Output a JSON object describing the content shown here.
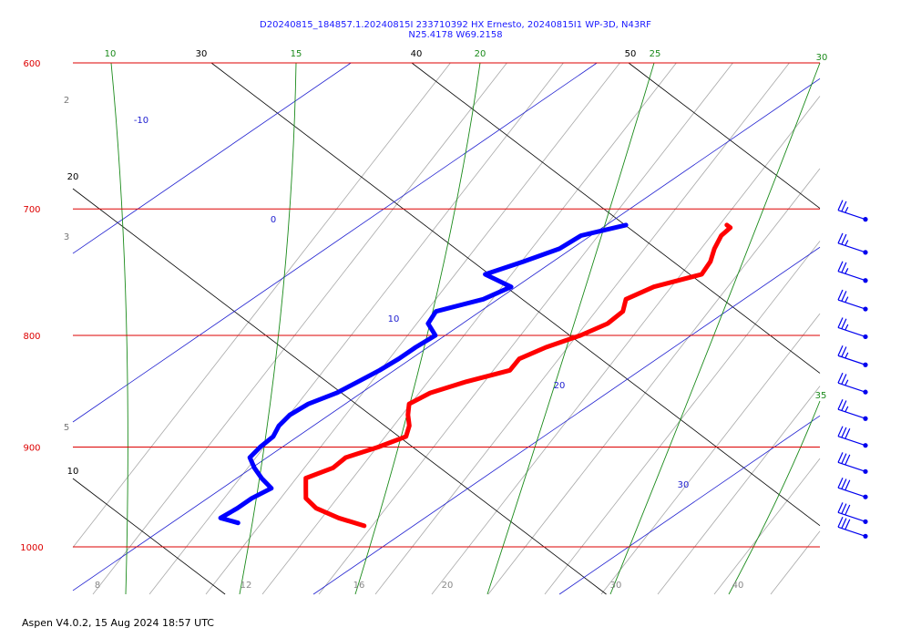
{
  "chart_data": {
    "type": "skew-t",
    "title": "D20240815_184857.1.20240815I 233710392 HX Ernesto, 20240815I1 WP-3D, N43RF",
    "subtitle": "N25.4178 W69.2158",
    "pressure_levels": [
      {
        "p": 600,
        "label": "600"
      },
      {
        "p": 700,
        "label": "700"
      },
      {
        "p": 800,
        "label": "800"
      },
      {
        "p": 900,
        "label": "900"
      },
      {
        "p": 1000,
        "label": "1000"
      }
    ],
    "isotherms": [
      {
        "t": -10,
        "label": "-10"
      },
      {
        "t": 0,
        "label": "0"
      },
      {
        "t": 10,
        "label": "10"
      },
      {
        "t": 20,
        "label": "20"
      },
      {
        "t": 30,
        "label": "30"
      }
    ],
    "bottom_temp_ticks": [
      "8",
      "12",
      "16",
      "20",
      "30",
      "40"
    ],
    "dry_adiabat_labels": [
      "10",
      "20",
      "30",
      "40",
      "50"
    ],
    "moist_adiabat_labels": [
      "10",
      "15",
      "20",
      "25",
      "30",
      "35"
    ],
    "mixing_ratio_labels": [
      "2",
      "3",
      "5"
    ],
    "temperature": {
      "name": "Temperature",
      "color": "#ff0000",
      "points": [
        [
          712,
          14.9
        ],
        [
          714,
          15.2
        ],
        [
          720,
          15.3
        ],
        [
          730,
          15.8
        ],
        [
          740,
          16.4
        ],
        [
          750,
          16.8
        ],
        [
          760,
          15.6
        ],
        [
          770,
          15.2
        ],
        [
          780,
          15.8
        ],
        [
          790,
          15.9
        ],
        [
          800,
          15.5
        ],
        [
          810,
          14.8
        ],
        [
          820,
          14.4
        ],
        [
          830,
          14.7
        ],
        [
          840,
          13.6
        ],
        [
          850,
          12.8
        ],
        [
          860,
          12.6
        ],
        [
          870,
          13.2
        ],
        [
          880,
          13.9
        ],
        [
          890,
          14.4
        ],
        [
          900,
          13.9
        ],
        [
          910,
          13.2
        ],
        [
          920,
          13.3
        ],
        [
          930,
          12.8
        ],
        [
          940,
          13.4
        ],
        [
          950,
          14.0
        ],
        [
          960,
          15.0
        ],
        [
          970,
          16.5
        ],
        [
          978,
          18.0
        ]
      ]
    },
    "dewpoint": {
      "name": "Dewpoint",
      "color": "#0000ff",
      "points": [
        [
          712,
          10.8
        ],
        [
          720,
          9.6
        ],
        [
          730,
          9.5
        ],
        [
          740,
          8.8
        ],
        [
          750,
          8.0
        ],
        [
          760,
          9.8
        ],
        [
          770,
          9.4
        ],
        [
          780,
          8.2
        ],
        [
          790,
          8.6
        ],
        [
          800,
          9.6
        ],
        [
          810,
          9.5
        ],
        [
          820,
          9.5
        ],
        [
          830,
          9.4
        ],
        [
          840,
          9.2
        ],
        [
          850,
          9.0
        ],
        [
          860,
          8.5
        ],
        [
          870,
          8.4
        ],
        [
          880,
          8.6
        ],
        [
          890,
          9.0
        ],
        [
          900,
          9.1
        ],
        [
          910,
          9.3
        ],
        [
          920,
          10.1
        ],
        [
          930,
          11.0
        ],
        [
          940,
          12.0
        ],
        [
          950,
          11.8
        ],
        [
          960,
          11.8
        ],
        [
          970,
          11.7
        ],
        [
          975,
          12.7
        ]
      ]
    },
    "winds": [
      {
        "p": 705,
        "dir": 90,
        "kt": 25
      },
      {
        "p": 730,
        "dir": 90,
        "kt": 25
      },
      {
        "p": 752,
        "dir": 90,
        "kt": 25
      },
      {
        "p": 775,
        "dir": 90,
        "kt": 25
      },
      {
        "p": 798,
        "dir": 90,
        "kt": 25
      },
      {
        "p": 822,
        "dir": 90,
        "kt": 25
      },
      {
        "p": 846,
        "dir": 90,
        "kt": 25
      },
      {
        "p": 870,
        "dir": 90,
        "kt": 25
      },
      {
        "p": 895,
        "dir": 90,
        "kt": 30
      },
      {
        "p": 920,
        "dir": 90,
        "kt": 30
      },
      {
        "p": 945,
        "dir": 90,
        "kt": 30
      },
      {
        "p": 970,
        "dir": 90,
        "kt": 30
      },
      {
        "p": 985,
        "dir": 90,
        "kt": 30
      }
    ]
  },
  "footer": "Aspen V4.0.2, 15 Aug 2024  18:57 UTC"
}
